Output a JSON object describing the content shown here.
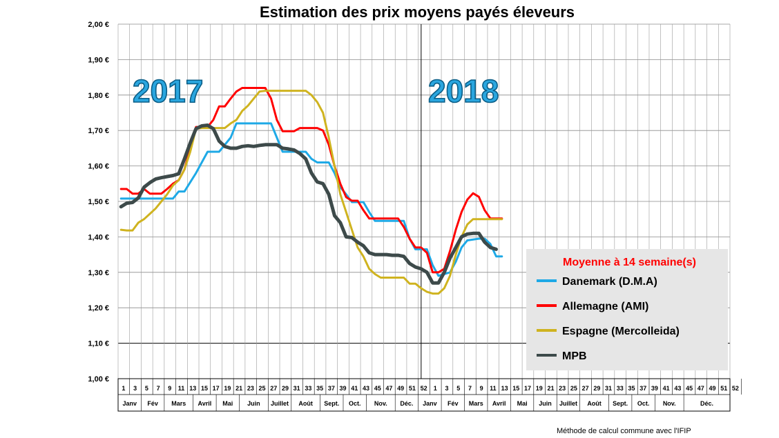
{
  "chart_data": {
    "type": "line",
    "title": "Estimation des prix moyens payés éleveurs",
    "ylim": [
      1.0,
      2.0
    ],
    "y_ticks": [
      "1,00 €",
      "1,10 €",
      "1,20 €",
      "1,30 €",
      "1,40 €",
      "1,50 €",
      "1,60 €",
      "1,70 €",
      "1,80 €",
      "1,90 €",
      "2,00 €"
    ],
    "grid": true,
    "year_labels": [
      "2017",
      "2018"
    ],
    "week_labels": [
      "1",
      "3",
      "5",
      "7",
      "9",
      "11",
      "13",
      "15",
      "17",
      "19",
      "21",
      "23",
      "25",
      "27",
      "29",
      "31",
      "33",
      "35",
      "37",
      "39",
      "41",
      "43",
      "45",
      "47",
      "49",
      "51",
      "52",
      "1",
      "3",
      "5",
      "7",
      "9",
      "11",
      "13",
      "15",
      "17",
      "19",
      "21",
      "23",
      "25",
      "27",
      "29",
      "31",
      "33",
      "35",
      "37",
      "39",
      "41",
      "43",
      "45",
      "47",
      "49",
      "51",
      "52"
    ],
    "months": [
      {
        "label": "Janv",
        "weeks": [
          1,
          4
        ]
      },
      {
        "label": "Fév",
        "weeks": [
          5,
          8
        ]
      },
      {
        "label": "Mars",
        "weeks": [
          9,
          13
        ]
      },
      {
        "label": "Avril",
        "weeks": [
          14,
          17
        ]
      },
      {
        "label": "Mai",
        "weeks": [
          18,
          21
        ]
      },
      {
        "label": "Juin",
        "weeks": [
          22,
          26
        ]
      },
      {
        "label": "Juillet",
        "weeks": [
          27,
          30
        ]
      },
      {
        "label": "Août",
        "weeks": [
          31,
          35
        ]
      },
      {
        "label": "Sept.",
        "weeks": [
          36,
          39
        ]
      },
      {
        "label": "Oct.",
        "weeks": [
          40,
          43
        ]
      },
      {
        "label": "Nov.",
        "weeks": [
          44,
          48
        ]
      },
      {
        "label": "Déc.",
        "weeks": [
          49,
          52
        ]
      },
      {
        "label": "Janv",
        "weeks": [
          53,
          56
        ]
      },
      {
        "label": "Fév",
        "weeks": [
          57,
          60
        ]
      },
      {
        "label": "Mars",
        "weeks": [
          61,
          64
        ]
      },
      {
        "label": "Avril",
        "weeks": [
          65,
          68
        ]
      },
      {
        "label": "Mai",
        "weeks": [
          69,
          72
        ]
      },
      {
        "label": "Juin",
        "weeks": [
          73,
          76
        ]
      },
      {
        "label": "Juillet",
        "weeks": [
          77,
          80
        ]
      },
      {
        "label": "Août",
        "weeks": [
          81,
          85
        ]
      },
      {
        "label": "Sept.",
        "weeks": [
          86,
          89
        ]
      },
      {
        "label": "Oct.",
        "weeks": [
          90,
          93
        ]
      },
      {
        "label": "Nov.",
        "weeks": [
          94,
          98
        ]
      },
      {
        "label": "Déc.",
        "weeks": [
          99,
          106
        ]
      }
    ],
    "x_max_week": 106,
    "year_divider_week": 52.5,
    "legend": {
      "title": "Moyenne à  14 semaine(s)",
      "position": "right"
    },
    "series": [
      {
        "name": "Danemark (D.M.A)",
        "color": "#1ea9e6",
        "width": 3,
        "points": [
          [
            1,
            1.508
          ],
          [
            4,
            1.508
          ],
          [
            6,
            1.508
          ],
          [
            8,
            1.508
          ],
          [
            10,
            1.508
          ],
          [
            11,
            1.528
          ],
          [
            12,
            1.528
          ],
          [
            14,
            1.58
          ],
          [
            16,
            1.64
          ],
          [
            18,
            1.64
          ],
          [
            20,
            1.68
          ],
          [
            21,
            1.72
          ],
          [
            23,
            1.72
          ],
          [
            25,
            1.72
          ],
          [
            27,
            1.72
          ],
          [
            28,
            1.68
          ],
          [
            29,
            1.64
          ],
          [
            31,
            1.64
          ],
          [
            33,
            1.64
          ],
          [
            34,
            1.62
          ],
          [
            35,
            1.61
          ],
          [
            37,
            1.61
          ],
          [
            38,
            1.58
          ],
          [
            39,
            1.54
          ],
          [
            40,
            1.52
          ],
          [
            41,
            1.498
          ],
          [
            43,
            1.498
          ],
          [
            44,
            1.47
          ],
          [
            45,
            1.445
          ],
          [
            47,
            1.445
          ],
          [
            49,
            1.445
          ],
          [
            50,
            1.445
          ],
          [
            51,
            1.395
          ],
          [
            52,
            1.365
          ],
          [
            54,
            1.365
          ],
          [
            55,
            1.32
          ],
          [
            56,
            1.29
          ],
          [
            58,
            1.3
          ],
          [
            59,
            1.33
          ],
          [
            60,
            1.37
          ],
          [
            61,
            1.39
          ],
          [
            63,
            1.395
          ],
          [
            64,
            1.395
          ],
          [
            65,
            1.38
          ],
          [
            66,
            1.345
          ],
          [
            67,
            1.345
          ]
        ]
      },
      {
        "name": "Allemagne (AMI)",
        "color": "#ff0000",
        "width": 3,
        "points": [
          [
            1,
            1.535
          ],
          [
            2,
            1.535
          ],
          [
            3,
            1.522
          ],
          [
            4,
            1.522
          ],
          [
            5,
            1.535
          ],
          [
            6,
            1.522
          ],
          [
            7,
            1.522
          ],
          [
            8,
            1.522
          ],
          [
            9,
            1.535
          ],
          [
            10,
            1.55
          ],
          [
            11,
            1.56
          ],
          [
            12,
            1.59
          ],
          [
            13,
            1.65
          ],
          [
            14,
            1.71
          ],
          [
            15,
            1.71
          ],
          [
            16,
            1.71
          ],
          [
            17,
            1.73
          ],
          [
            18,
            1.768
          ],
          [
            19,
            1.768
          ],
          [
            20,
            1.79
          ],
          [
            21,
            1.81
          ],
          [
            22,
            1.82
          ],
          [
            24,
            1.82
          ],
          [
            25,
            1.82
          ],
          [
            26,
            1.82
          ],
          [
            27,
            1.79
          ],
          [
            28,
            1.73
          ],
          [
            29,
            1.698
          ],
          [
            30,
            1.698
          ],
          [
            31,
            1.698
          ],
          [
            32,
            1.707
          ],
          [
            34,
            1.707
          ],
          [
            35,
            1.707
          ],
          [
            36,
            1.7
          ],
          [
            37,
            1.66
          ],
          [
            38,
            1.6
          ],
          [
            39,
            1.55
          ],
          [
            40,
            1.512
          ],
          [
            41,
            1.502
          ],
          [
            42,
            1.502
          ],
          [
            43,
            1.475
          ],
          [
            44,
            1.452
          ],
          [
            45,
            1.452
          ],
          [
            47,
            1.452
          ],
          [
            49,
            1.452
          ],
          [
            50,
            1.428
          ],
          [
            51,
            1.395
          ],
          [
            52,
            1.37
          ],
          [
            53,
            1.37
          ],
          [
            54,
            1.355
          ],
          [
            55,
            1.3
          ],
          [
            56,
            1.3
          ],
          [
            57,
            1.31
          ],
          [
            58,
            1.36
          ],
          [
            59,
            1.42
          ],
          [
            60,
            1.47
          ],
          [
            61,
            1.505
          ],
          [
            62,
            1.523
          ],
          [
            63,
            1.513
          ],
          [
            64,
            1.475
          ],
          [
            65,
            1.452
          ],
          [
            66,
            1.452
          ],
          [
            67,
            1.452
          ]
        ]
      },
      {
        "name": "Espagne (Mercolleida)",
        "color": "#cfb31f",
        "width": 3,
        "points": [
          [
            1,
            1.42
          ],
          [
            2,
            1.418
          ],
          [
            3,
            1.418
          ],
          [
            4,
            1.44
          ],
          [
            5,
            1.45
          ],
          [
            6,
            1.465
          ],
          [
            7,
            1.48
          ],
          [
            8,
            1.5
          ],
          [
            9,
            1.52
          ],
          [
            10,
            1.545
          ],
          [
            11,
            1.56
          ],
          [
            12,
            1.59
          ],
          [
            13,
            1.64
          ],
          [
            14,
            1.705
          ],
          [
            15,
            1.707
          ],
          [
            16,
            1.707
          ],
          [
            17,
            1.707
          ],
          [
            18,
            1.707
          ],
          [
            19,
            1.707
          ],
          [
            20,
            1.72
          ],
          [
            21,
            1.73
          ],
          [
            22,
            1.755
          ],
          [
            23,
            1.77
          ],
          [
            24,
            1.79
          ],
          [
            25,
            1.81
          ],
          [
            26,
            1.812
          ],
          [
            28,
            1.812
          ],
          [
            30,
            1.812
          ],
          [
            32,
            1.812
          ],
          [
            33,
            1.812
          ],
          [
            34,
            1.8
          ],
          [
            35,
            1.78
          ],
          [
            36,
            1.75
          ],
          [
            37,
            1.68
          ],
          [
            38,
            1.6
          ],
          [
            39,
            1.52
          ],
          [
            40,
            1.47
          ],
          [
            41,
            1.42
          ],
          [
            42,
            1.37
          ],
          [
            43,
            1.345
          ],
          [
            44,
            1.31
          ],
          [
            45,
            1.295
          ],
          [
            46,
            1.285
          ],
          [
            48,
            1.285
          ],
          [
            50,
            1.285
          ],
          [
            51,
            1.268
          ],
          [
            52,
            1.268
          ],
          [
            53,
            1.255
          ],
          [
            54,
            1.245
          ],
          [
            55,
            1.24
          ],
          [
            56,
            1.24
          ],
          [
            57,
            1.255
          ],
          [
            58,
            1.29
          ],
          [
            59,
            1.35
          ],
          [
            60,
            1.4
          ],
          [
            61,
            1.435
          ],
          [
            62,
            1.45
          ],
          [
            64,
            1.45
          ],
          [
            66,
            1.45
          ],
          [
            67,
            1.45
          ]
        ]
      },
      {
        "name": "MPB",
        "color": "#3d4a4a",
        "width": 5,
        "points": [
          [
            1,
            1.485
          ],
          [
            2,
            1.495
          ],
          [
            3,
            1.497
          ],
          [
            4,
            1.51
          ],
          [
            5,
            1.54
          ],
          [
            6,
            1.553
          ],
          [
            7,
            1.563
          ],
          [
            8,
            1.567
          ],
          [
            9,
            1.57
          ],
          [
            10,
            1.573
          ],
          [
            11,
            1.578
          ],
          [
            12,
            1.62
          ],
          [
            13,
            1.665
          ],
          [
            14,
            1.705
          ],
          [
            15,
            1.713
          ],
          [
            16,
            1.715
          ],
          [
            17,
            1.705
          ],
          [
            18,
            1.67
          ],
          [
            19,
            1.655
          ],
          [
            20,
            1.65
          ],
          [
            21,
            1.65
          ],
          [
            22,
            1.655
          ],
          [
            23,
            1.657
          ],
          [
            24,
            1.655
          ],
          [
            25,
            1.658
          ],
          [
            26,
            1.66
          ],
          [
            27,
            1.66
          ],
          [
            28,
            1.66
          ],
          [
            29,
            1.65
          ],
          [
            30,
            1.648
          ],
          [
            31,
            1.645
          ],
          [
            32,
            1.635
          ],
          [
            33,
            1.62
          ],
          [
            34,
            1.58
          ],
          [
            35,
            1.555
          ],
          [
            36,
            1.55
          ],
          [
            37,
            1.52
          ],
          [
            38,
            1.46
          ],
          [
            39,
            1.44
          ],
          [
            40,
            1.4
          ],
          [
            41,
            1.398
          ],
          [
            42,
            1.385
          ],
          [
            43,
            1.375
          ],
          [
            44,
            1.355
          ],
          [
            45,
            1.35
          ],
          [
            46,
            1.35
          ],
          [
            47,
            1.35
          ],
          [
            48,
            1.348
          ],
          [
            49,
            1.348
          ],
          [
            50,
            1.345
          ],
          [
            51,
            1.325
          ],
          [
            52,
            1.315
          ],
          [
            53,
            1.31
          ],
          [
            54,
            1.3
          ],
          [
            55,
            1.27
          ],
          [
            56,
            1.27
          ],
          [
            57,
            1.3
          ],
          [
            58,
            1.34
          ],
          [
            59,
            1.37
          ],
          [
            60,
            1.4
          ],
          [
            61,
            1.408
          ],
          [
            62,
            1.41
          ],
          [
            63,
            1.41
          ],
          [
            64,
            1.385
          ],
          [
            65,
            1.37
          ],
          [
            66,
            1.365
          ]
        ]
      }
    ]
  },
  "footer": "Méthode de calcul commune avec l'IFIP"
}
